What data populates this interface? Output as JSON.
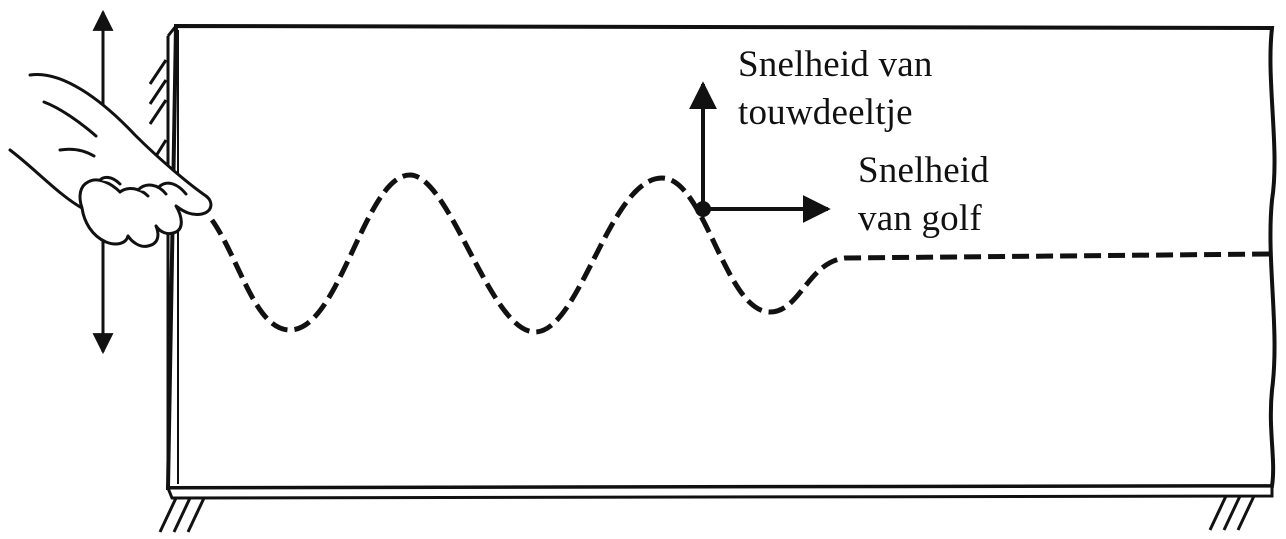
{
  "labels": {
    "particle_velocity_line1": "Snelheid van",
    "particle_velocity_line2": "touwdeeltje",
    "wave_velocity_line1": "Snelheid",
    "wave_velocity_line2": "van golf"
  },
  "colors": {
    "ink": "#111111",
    "background": "#ffffff"
  },
  "icons": {
    "hand": "hand-holding-rope-icon",
    "vertical_motion_arrow": "double-headed-vertical-arrow-icon",
    "particle_velocity_arrow": "arrow-up-icon",
    "wave_velocity_arrow": "arrow-right-icon"
  }
}
